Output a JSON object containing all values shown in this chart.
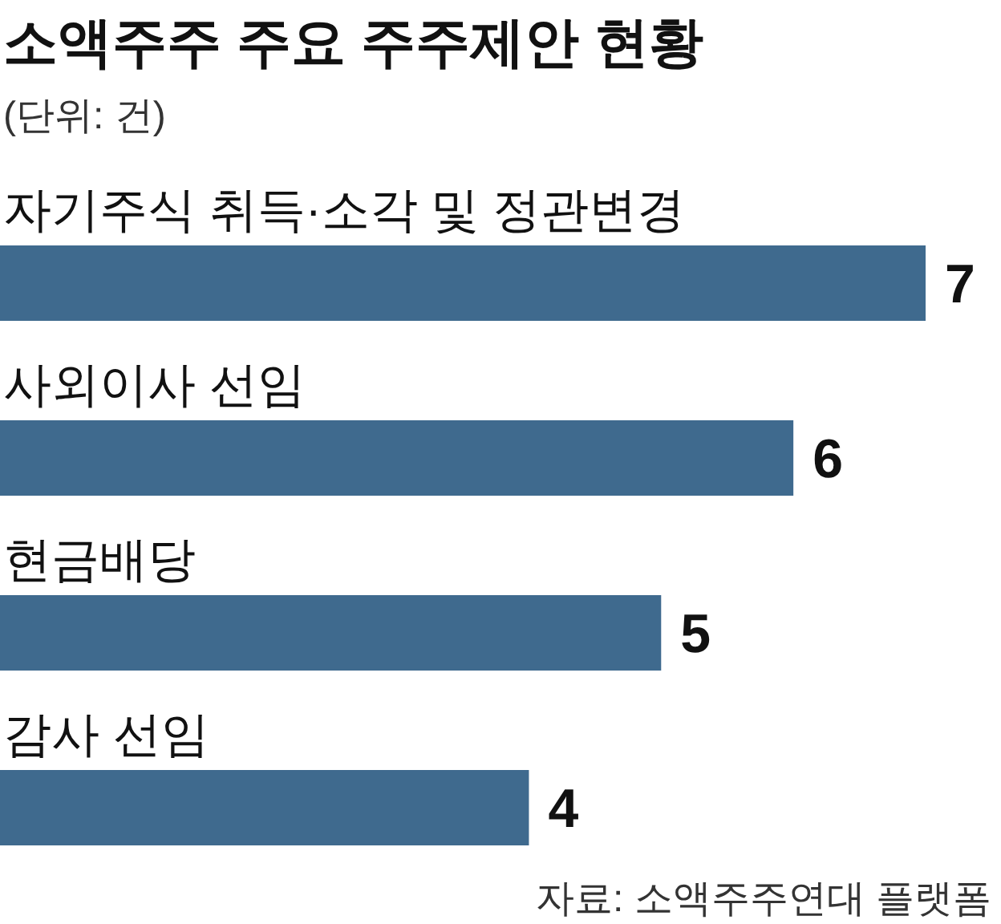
{
  "chart_data": {
    "type": "bar",
    "orientation": "horizontal",
    "title": "소액주주 주요 주주제안 현황",
    "subtitle": "(단위: 건)",
    "categories": [
      "자기주식 취득·소각 및 정관변경",
      "사외이사 선임",
      "현금배당",
      "감사 선임"
    ],
    "values": [
      7,
      6,
      5,
      4
    ],
    "color": "#3f6a8e",
    "data_labels": true,
    "annotations": [
      "자료: 소액주주연대 플랫폼"
    ]
  }
}
